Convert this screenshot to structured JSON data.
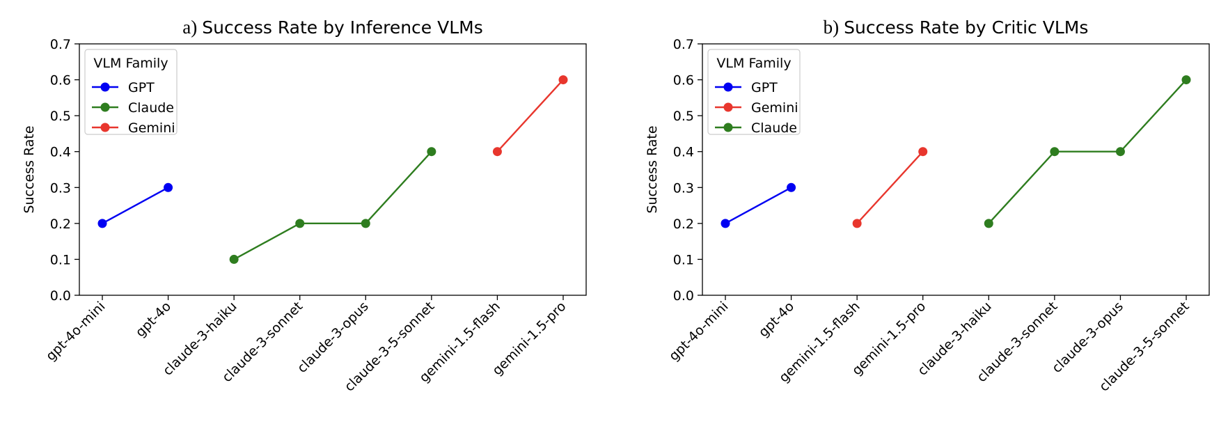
{
  "chart_data": [
    {
      "type": "line",
      "title_prefix": "a)",
      "title": "Success Rate by Inference VLMs",
      "xlabel": "",
      "ylabel": "Success Rate",
      "ylim": [
        0,
        0.7
      ],
      "yticks": [
        "0.0",
        "0.1",
        "0.2",
        "0.3",
        "0.4",
        "0.5",
        "0.6",
        "0.7"
      ],
      "categories": [
        "gpt-4o-mini",
        "gpt-4o",
        "claude-3-haiku",
        "claude-3-sonnet",
        "claude-3-opus",
        "claude-3-5-sonnet",
        "gemini-1.5-flash",
        "gemini-1.5-pro"
      ],
      "legend_title": "VLM Family",
      "legend_position": "top-left",
      "grid": false,
      "series": [
        {
          "name": "GPT",
          "color": "#0000f2",
          "x": [
            "gpt-4o-mini",
            "gpt-4o"
          ],
          "values": [
            0.2,
            0.3
          ]
        },
        {
          "name": "Claude",
          "color": "#2e7d1f",
          "x": [
            "claude-3-haiku",
            "claude-3-sonnet",
            "claude-3-opus",
            "claude-3-5-sonnet"
          ],
          "values": [
            0.1,
            0.2,
            0.2,
            0.4
          ]
        },
        {
          "name": "Gemini",
          "color": "#e8362d",
          "x": [
            "gemini-1.5-flash",
            "gemini-1.5-pro"
          ],
          "values": [
            0.4,
            0.6
          ]
        }
      ]
    },
    {
      "type": "line",
      "title_prefix": "b)",
      "title": "Success Rate by Critic VLMs",
      "xlabel": "",
      "ylabel": "Success Rate",
      "ylim": [
        0,
        0.7
      ],
      "yticks": [
        "0.0",
        "0.1",
        "0.2",
        "0.3",
        "0.4",
        "0.5",
        "0.6",
        "0.7"
      ],
      "categories": [
        "gpt-4o-mini",
        "gpt-4o",
        "gemini-1.5-flash",
        "gemini-1.5-pro",
        "claude-3-haiku",
        "claude-3-sonnet",
        "claude-3-opus",
        "claude-3-5-sonnet"
      ],
      "legend_title": "VLM Family",
      "legend_position": "top-left",
      "grid": false,
      "series": [
        {
          "name": "GPT",
          "color": "#0000f2",
          "x": [
            "gpt-4o-mini",
            "gpt-4o"
          ],
          "values": [
            0.2,
            0.3
          ]
        },
        {
          "name": "Gemini",
          "color": "#e8362d",
          "x": [
            "gemini-1.5-flash",
            "gemini-1.5-pro"
          ],
          "values": [
            0.2,
            0.4
          ]
        },
        {
          "name": "Claude",
          "color": "#2e7d1f",
          "x": [
            "claude-3-haiku",
            "claude-3-sonnet",
            "claude-3-opus",
            "claude-3-5-sonnet"
          ],
          "values": [
            0.2,
            0.4,
            0.4,
            0.6
          ]
        }
      ]
    }
  ]
}
